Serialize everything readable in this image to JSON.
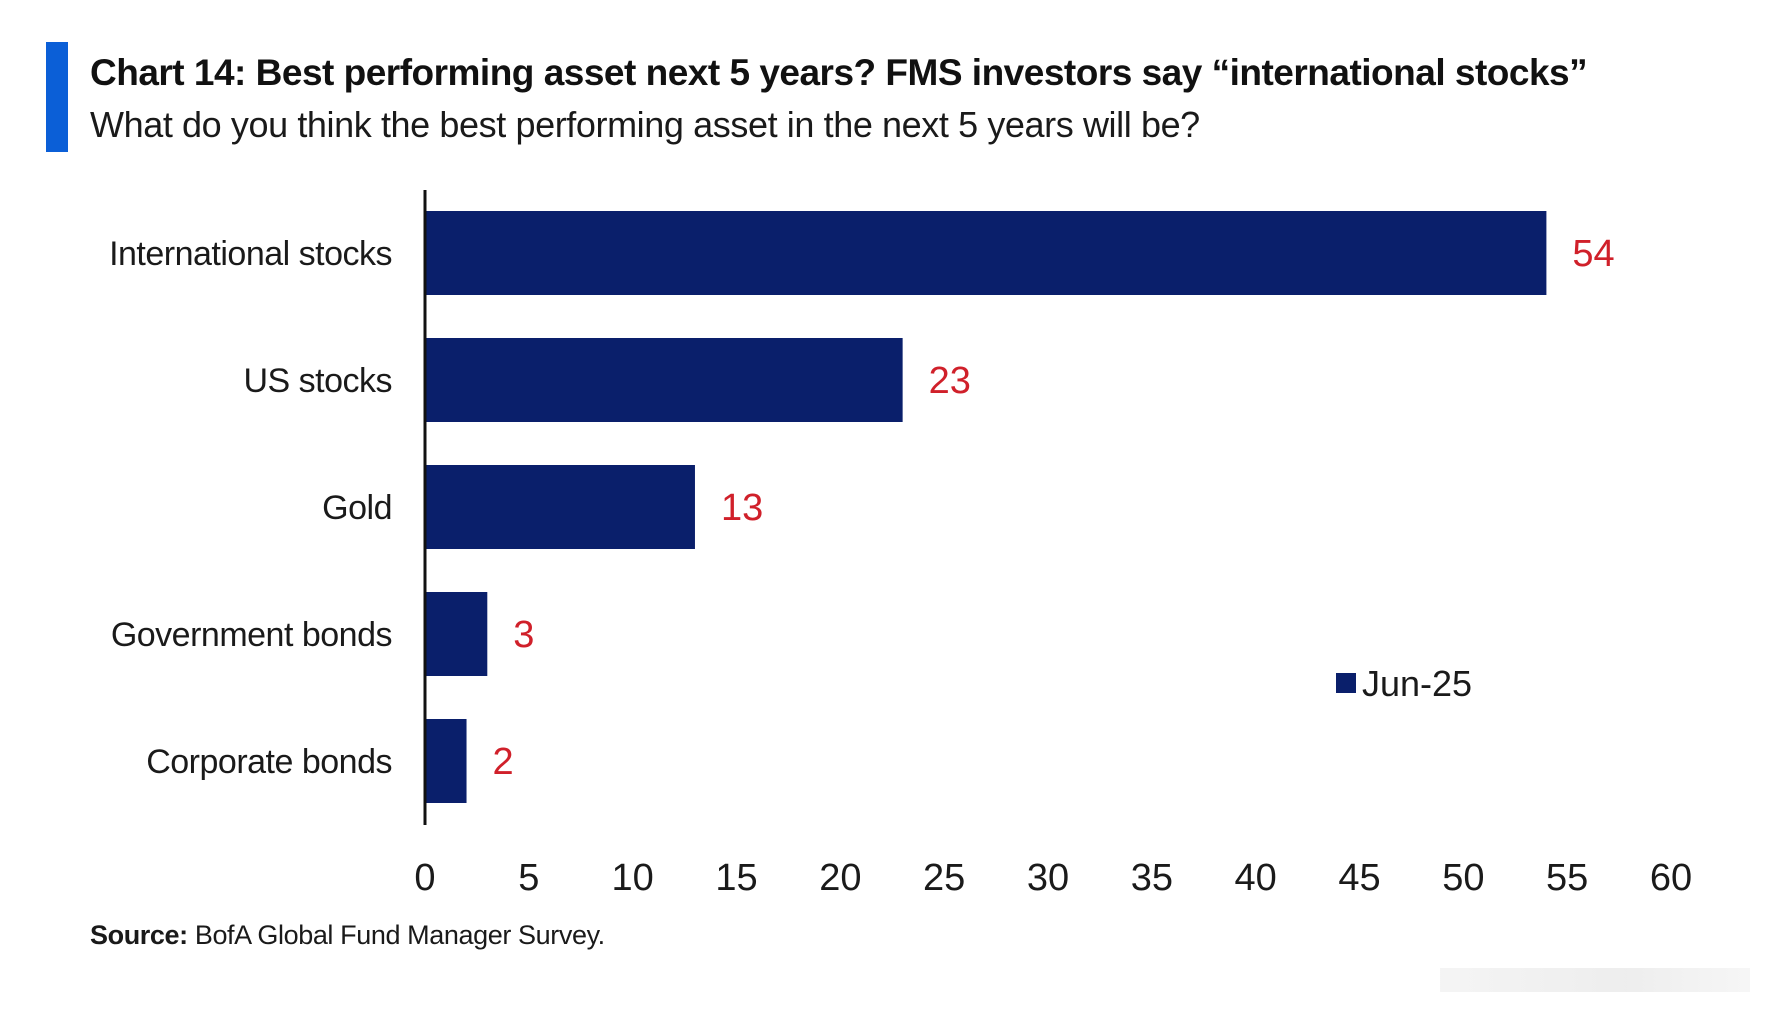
{
  "header": {
    "title": "Chart 14: Best performing asset next 5 years? FMS investors say “international stocks”",
    "subtitle": "What do you think the best performing asset in the next 5 years will be?"
  },
  "footer": {
    "source_label": "Source:",
    "source_text": " BofA Global Fund Manager Survey."
  },
  "colors": {
    "accent": "#0b5fd7",
    "bar": "#0a1f6b",
    "value_label": "#d0202a",
    "axis": "#111111"
  },
  "chart_data": {
    "type": "bar",
    "orientation": "horizontal",
    "categories": [
      "International stocks",
      "US stocks",
      "Gold",
      "Government bonds",
      "Corporate bonds"
    ],
    "series": [
      {
        "name": "Jun-25",
        "values": [
          54,
          23,
          13,
          3,
          2
        ]
      }
    ],
    "xlim": [
      0,
      60
    ],
    "xticks": [
      0,
      5,
      10,
      15,
      20,
      25,
      30,
      35,
      40,
      45,
      50,
      55,
      60
    ],
    "grid": false,
    "legend_position": "right",
    "data_labels": true
  }
}
